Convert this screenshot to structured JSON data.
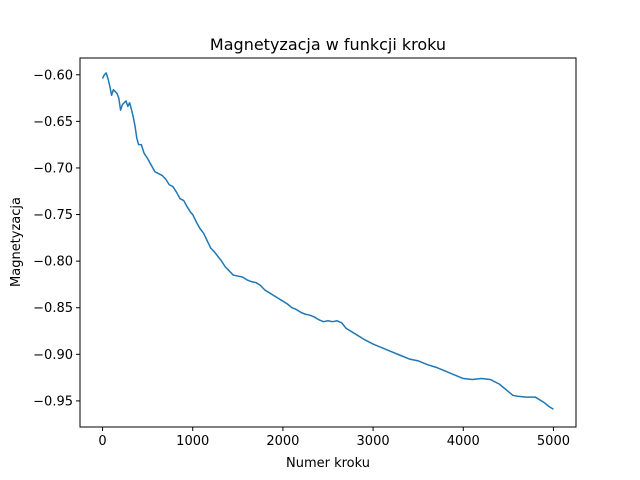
{
  "chart_data": {
    "type": "line",
    "title": "Magnetyzacja w funkcji kroku",
    "xlabel": "Numer kroku",
    "ylabel": "Magnetyzacja",
    "xlim": [
      -250,
      5250
    ],
    "ylim": [
      -0.978,
      -0.582
    ],
    "xticks": [
      0,
      1000,
      2000,
      3000,
      4000,
      5000
    ],
    "xtick_labels": [
      "0",
      "1000",
      "2000",
      "3000",
      "4000",
      "5000"
    ],
    "yticks": [
      -0.6,
      -0.65,
      -0.7,
      -0.75,
      -0.8,
      -0.85,
      -0.9,
      -0.95
    ],
    "ytick_labels": [
      "−0.60",
      "−0.65",
      "−0.70",
      "−0.75",
      "−0.80",
      "−0.85",
      "−0.90",
      "−0.95"
    ],
    "grid": false,
    "color": "#1f77b4",
    "series": [
      {
        "x": [
          0,
          20,
          40,
          60,
          80,
          100,
          120,
          140,
          160,
          180,
          200,
          220,
          240,
          260,
          280,
          300,
          320,
          340,
          360,
          380,
          400,
          430,
          460,
          500,
          540,
          580,
          620,
          660,
          700,
          740,
          780,
          820,
          860,
          900,
          940,
          980,
          1000,
          1040,
          1080,
          1120,
          1160,
          1200,
          1240,
          1280,
          1320,
          1360,
          1400,
          1450,
          1500,
          1550,
          1600,
          1650,
          1700,
          1750,
          1800,
          1850,
          1900,
          1950,
          2000,
          2050,
          2100,
          2150,
          2200,
          2250,
          2300,
          2350,
          2400,
          2450,
          2500,
          2550,
          2600,
          2650,
          2700,
          2800,
          2900,
          3000,
          3100,
          3200,
          3300,
          3400,
          3500,
          3600,
          3700,
          3800,
          3900,
          4000,
          4100,
          4200,
          4300,
          4400,
          4500,
          4550,
          4600,
          4700,
          4800,
          4900,
          4950,
          5000
        ],
        "y": [
          -0.604,
          -0.6,
          -0.598,
          -0.604,
          -0.612,
          -0.622,
          -0.616,
          -0.618,
          -0.62,
          -0.625,
          -0.638,
          -0.632,
          -0.63,
          -0.628,
          -0.634,
          -0.63,
          -0.637,
          -0.645,
          -0.655,
          -0.668,
          -0.675,
          -0.675,
          -0.684,
          -0.69,
          -0.697,
          -0.704,
          -0.706,
          -0.708,
          -0.712,
          -0.718,
          -0.72,
          -0.726,
          -0.733,
          -0.735,
          -0.742,
          -0.748,
          -0.75,
          -0.758,
          -0.765,
          -0.77,
          -0.778,
          -0.786,
          -0.79,
          -0.795,
          -0.8,
          -0.806,
          -0.81,
          -0.815,
          -0.816,
          -0.817,
          -0.82,
          -0.822,
          -0.823,
          -0.826,
          -0.831,
          -0.834,
          -0.837,
          -0.84,
          -0.843,
          -0.846,
          -0.85,
          -0.852,
          -0.855,
          -0.857,
          -0.858,
          -0.86,
          -0.863,
          -0.865,
          -0.864,
          -0.865,
          -0.864,
          -0.866,
          -0.872,
          -0.878,
          -0.884,
          -0.889,
          -0.893,
          -0.897,
          -0.901,
          -0.905,
          -0.907,
          -0.911,
          -0.914,
          -0.918,
          -0.922,
          -0.926,
          -0.927,
          -0.926,
          -0.927,
          -0.932,
          -0.94,
          -0.944,
          -0.945,
          -0.946,
          -0.946,
          -0.952,
          -0.956,
          -0.959
        ]
      }
    ]
  }
}
